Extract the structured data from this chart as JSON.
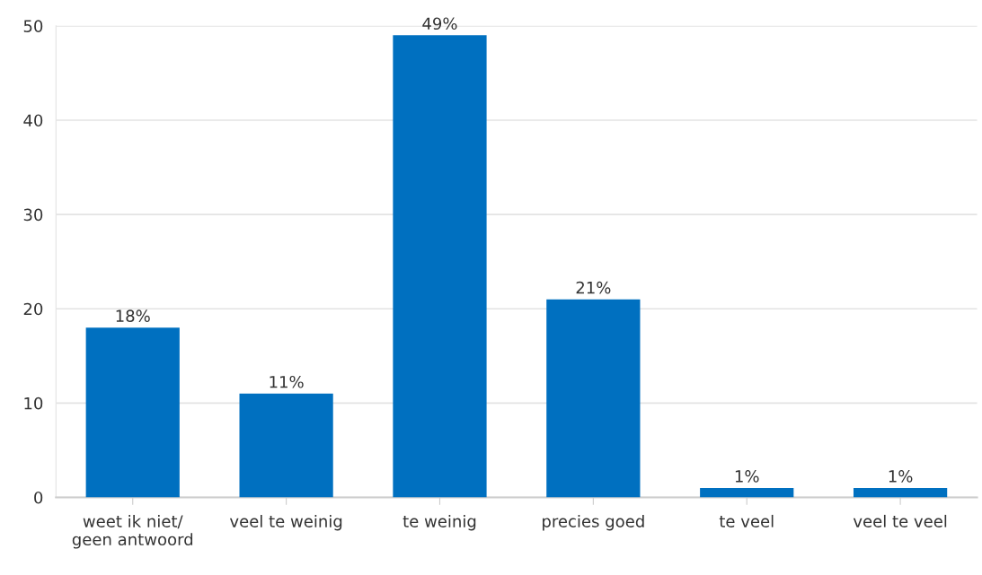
{
  "chart_data": {
    "type": "bar",
    "categories": [
      "weet ik niet/\ngeen antwoord",
      "veel te weinig",
      "te weinig",
      "precies goed",
      "te veel",
      "veel te veel"
    ],
    "values": [
      18,
      11,
      49,
      21,
      1,
      1
    ],
    "value_labels": [
      "18%",
      "11%",
      "49%",
      "21%",
      "1%",
      "1%"
    ],
    "color": "#0070c0",
    "ylim": [
      0,
      50
    ],
    "yticks": [
      0,
      10,
      20,
      30,
      40,
      50
    ],
    "grid": "y"
  }
}
